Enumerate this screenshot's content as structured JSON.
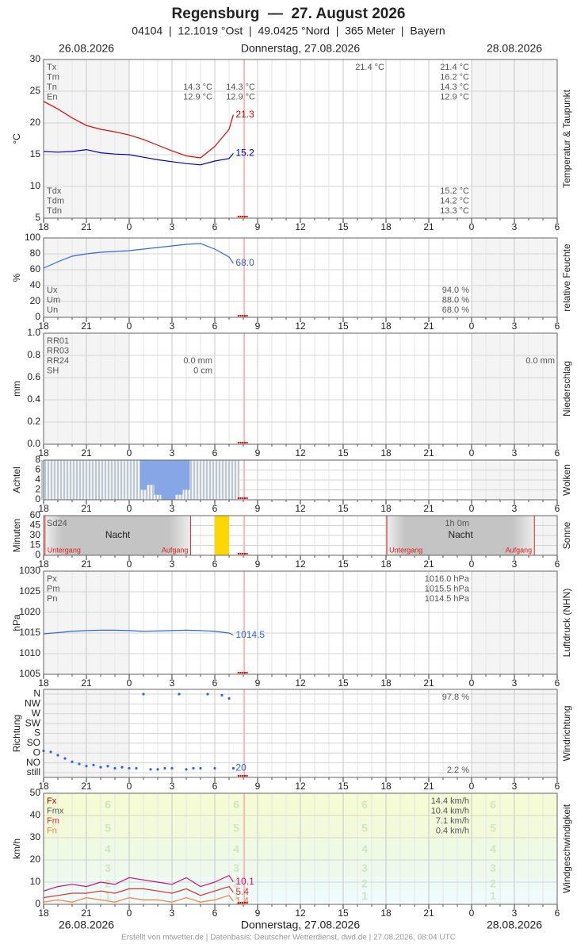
{
  "header": {
    "title": "Regensburg  —  27. August 2026",
    "subtitle": "04104  |  12.1019 °Ost  |  49.0425 °Nord  |  365 Meter  |  Bayern"
  },
  "dates": [
    "26.08.2026",
    "Donnerstag, 27.08.2026",
    "28.08.2026"
  ],
  "footer": "Erstellt von mtwetter.de | Datenbasis: Deutscher Wetterdienst, dwd.de | 27.08.2026, 08:04 UTC",
  "chart_data": [
    {
      "type": "line",
      "ylabel": "°C",
      "side_label": "Temperatur & Taupunkt",
      "xlim": [
        18,
        54
      ],
      "xticks": [
        18,
        21,
        {
          "value": 24,
          "label": "0"
        },
        {
          "value": 27,
          "label": "3"
        },
        {
          "value": 30,
          "label": "6"
        },
        {
          "value": 33,
          "label": "9"
        },
        {
          "value": 36,
          "label": "12"
        },
        {
          "value": 39,
          "label": "15"
        },
        {
          "value": 42,
          "label": "18"
        },
        {
          "value": 45,
          "label": "21"
        },
        {
          "value": 48,
          "label": "0"
        },
        {
          "value": 51,
          "label": "3"
        },
        {
          "value": 54,
          "label": "6"
        }
      ],
      "ylim": [
        5,
        30
      ],
      "yticks": [
        5,
        10,
        15,
        20,
        25,
        30
      ],
      "x": [
        18,
        19,
        20,
        21,
        22,
        23,
        24,
        25,
        26,
        27,
        28,
        29,
        30,
        31,
        31.3
      ],
      "series": [
        {
          "color": "#e00000",
          "values": [
            23.4,
            22.2,
            20.8,
            19.6,
            19.0,
            18.6,
            18.1,
            17.4,
            16.5,
            15.6,
            14.8,
            14.5,
            16.3,
            19.0,
            21.3
          ],
          "last_label": "21.3"
        },
        {
          "color": "#0000cc",
          "values": [
            15.5,
            15.4,
            15.5,
            15.8,
            15.3,
            15.1,
            15.0,
            14.6,
            14.2,
            13.9,
            13.6,
            13.4,
            14.0,
            14.4,
            15.2
          ],
          "last_label": "15.2"
        }
      ],
      "stats": [
        {
          "corner": "top",
          "names": [
            "Tx",
            "Tm",
            "Tn",
            "En"
          ],
          "columns": [
            [
              null,
              null,
              "14.3 °C",
              "12.9 °C"
            ],
            [
              null,
              null,
              "14.3 °C",
              "12.9 °C"
            ],
            [
              "21.4 °C",
              null,
              null,
              null
            ],
            [
              "21.4 °C",
              "16.2 °C",
              "14.3 °C",
              "12.9 °C"
            ]
          ]
        },
        {
          "corner": "bottom",
          "names": [
            "Tdx",
            "Tdm",
            "Tdn"
          ],
          "columns": [
            [
              "15.2 °C",
              "14.2 °C",
              "13.3 °C"
            ]
          ]
        }
      ]
    },
    {
      "type": "line",
      "ylabel": "%",
      "side_label": "relative Feuchte",
      "xlim": [
        18,
        54
      ],
      "xticks": [
        18,
        21,
        {
          "value": 24,
          "label": "0"
        },
        {
          "value": 27,
          "label": "3"
        },
        {
          "value": 30,
          "label": "6"
        },
        {
          "value": 33,
          "label": "9"
        },
        {
          "value": 36,
          "label": "12"
        },
        {
          "value": 39,
          "label": "15"
        },
        {
          "value": 42,
          "label": "18"
        },
        {
          "value": 45,
          "label": "21"
        },
        {
          "value": 48,
          "label": "0"
        },
        {
          "value": 51,
          "label": "3"
        },
        {
          "value": 54,
          "label": "6"
        }
      ],
      "ylim": [
        0,
        100
      ],
      "yticks": [
        0,
        20,
        40,
        60,
        80,
        100
      ],
      "x": [
        18,
        19,
        20,
        21,
        22,
        23,
        24,
        25,
        26,
        27,
        28,
        29,
        30,
        31,
        31.3
      ],
      "series": [
        {
          "color": "#3366dd",
          "values": [
            62,
            70,
            77,
            80,
            82,
            83,
            84,
            86,
            88,
            90,
            92,
            93,
            86,
            76,
            68
          ],
          "last_label": "68.0"
        }
      ],
      "stats": [
        {
          "corner": "bottom",
          "names": [
            "Ux",
            "Um",
            "Un"
          ],
          "columns": [
            [
              "94.0 %",
              "88.0 %",
              "68.0 %"
            ]
          ]
        }
      ]
    },
    {
      "type": "bar",
      "ylabel": "mm",
      "side_label": "Niederschlag",
      "xlim": [
        18,
        54
      ],
      "xticks": [
        18,
        21,
        {
          "value": 24,
          "label": "0"
        },
        {
          "value": 27,
          "label": "3"
        },
        {
          "value": 30,
          "label": "6"
        },
        {
          "value": 33,
          "label": "9"
        },
        {
          "value": 36,
          "label": "12"
        },
        {
          "value": 39,
          "label": "15"
        },
        {
          "value": 42,
          "label": "18"
        },
        {
          "value": 45,
          "label": "21"
        },
        {
          "value": 48,
          "label": "0"
        },
        {
          "value": 51,
          "label": "3"
        },
        {
          "value": 54,
          "label": "6"
        }
      ],
      "ylim": [
        0,
        1
      ],
      "yticks": [
        {
          "value": 0,
          "label": "0.0"
        },
        0.2,
        0.4,
        0.6,
        0.8,
        {
          "value": 1,
          "label": "1.0"
        }
      ],
      "stats": [
        {
          "corner": "top",
          "names": [
            "RR01",
            "RR03",
            "RR24",
            "SH"
          ],
          "columns": [
            [
              null,
              null,
              "0.0 mm",
              "0 cm"
            ],
            [
              null,
              null,
              "0.0 mm",
              null
            ]
          ]
        }
      ]
    },
    {
      "type": "bar",
      "ylabel": "Achtel",
      "side_label": "Wolken",
      "hatch": true,
      "color": "#8fa0b0",
      "complement_color": "#87a6e6",
      "xlim": [
        18,
        54
      ],
      "xticks": [
        18,
        21,
        {
          "value": 24,
          "label": "0"
        },
        {
          "value": 27,
          "label": "3"
        },
        {
          "value": 30,
          "label": "6"
        },
        {
          "value": 33,
          "label": "9"
        },
        {
          "value": 36,
          "label": "12"
        },
        {
          "value": 39,
          "label": "15"
        },
        {
          "value": 42,
          "label": "18"
        },
        {
          "value": 45,
          "label": "21"
        },
        {
          "value": 48,
          "label": "0"
        },
        {
          "value": 51,
          "label": "3"
        },
        {
          "value": 54,
          "label": "6"
        }
      ],
      "ylim": [
        0,
        8
      ],
      "yticks": [
        0,
        2,
        4,
        6,
        8
      ],
      "x": [
        18,
        18.5,
        19,
        19.5,
        20,
        20.5,
        21,
        21.5,
        22,
        22.5,
        23,
        23.5,
        24,
        24.5,
        25,
        25.5,
        26,
        26.5,
        27,
        27.5,
        28,
        28.5,
        29,
        29.5,
        30,
        30.5,
        31,
        31.5
      ],
      "values": [
        8,
        8,
        8,
        8,
        8,
        8,
        8,
        8,
        8,
        8,
        8,
        8,
        8,
        8,
        2,
        3,
        1,
        0,
        0,
        1,
        2,
        8,
        8,
        8,
        8,
        8,
        8,
        8
      ]
    },
    {
      "type": "bar",
      "ylabel": "Minuten",
      "side_label": "Sonne",
      "color": "#ffd700",
      "night_label": "Nacht",
      "sunset_label": "Untergang",
      "sunrise_label": "Aufgang",
      "xlim": [
        18,
        54
      ],
      "xticks": [
        18,
        21,
        {
          "value": 24,
          "label": "0"
        },
        {
          "value": 27,
          "label": "3"
        },
        {
          "value": 30,
          "label": "6"
        },
        {
          "value": 33,
          "label": "9"
        },
        {
          "value": 36,
          "label": "12"
        },
        {
          "value": 39,
          "label": "15"
        },
        {
          "value": 42,
          "label": "18"
        },
        {
          "value": 45,
          "label": "21"
        },
        {
          "value": 48,
          "label": "0"
        },
        {
          "value": 51,
          "label": "3"
        },
        {
          "value": 54,
          "label": "6"
        }
      ],
      "ylim": [
        0,
        60
      ],
      "yticks": [
        0,
        15,
        30,
        45,
        60
      ],
      "x": [
        30.5
      ],
      "values": [
        60
      ],
      "stats": [
        {
          "corner": "top",
          "names": [
            "Sd24"
          ],
          "columns": [
            [
              "1h 0m"
            ]
          ]
        }
      ]
    },
    {
      "type": "line",
      "ylabel": "hPa",
      "side_label": "Luftdruck (NHN)",
      "xlim": [
        18,
        54
      ],
      "xticks": [
        18,
        21,
        {
          "value": 24,
          "label": "0"
        },
        {
          "value": 27,
          "label": "3"
        },
        {
          "value": 30,
          "label": "6"
        },
        {
          "value": 33,
          "label": "9"
        },
        {
          "value": 36,
          "label": "12"
        },
        {
          "value": 39,
          "label": "15"
        },
        {
          "value": 42,
          "label": "18"
        },
        {
          "value": 45,
          "label": "21"
        },
        {
          "value": 48,
          "label": "0"
        },
        {
          "value": 51,
          "label": "3"
        },
        {
          "value": 54,
          "label": "6"
        }
      ],
      "ylim": [
        1005,
        1030
      ],
      "yticks": [
        1005,
        1010,
        1015,
        1020,
        1025,
        1030
      ],
      "x": [
        18,
        19,
        20,
        21,
        22,
        23,
        24,
        25,
        26,
        27,
        28,
        29,
        30,
        31,
        31.3
      ],
      "series": [
        {
          "color": "#3366dd",
          "values": [
            1014.8,
            1015.1,
            1015.4,
            1015.6,
            1015.7,
            1015.7,
            1015.6,
            1015.4,
            1015.5,
            1015.6,
            1015.7,
            1015.6,
            1015.4,
            1015.0,
            1014.5
          ],
          "last_label": "1014.5"
        }
      ],
      "stats": [
        {
          "corner": "top",
          "names": [
            "Px",
            "Pm",
            "Pn"
          ],
          "columns": [
            [
              "1016.0 hPa",
              "1015.5 hPa",
              "1014.5 hPa"
            ]
          ]
        }
      ]
    },
    {
      "type": "scatter",
      "ylabel": "Richtung",
      "side_label": "Windrichtung",
      "xlim": [
        18,
        54
      ],
      "xticks": [
        18,
        21,
        {
          "value": 24,
          "label": "0"
        },
        {
          "value": 27,
          "label": "3"
        },
        {
          "value": 30,
          "label": "6"
        },
        {
          "value": 33,
          "label": "9"
        },
        {
          "value": 36,
          "label": "12"
        },
        {
          "value": 39,
          "label": "15"
        },
        {
          "value": 42,
          "label": "18"
        },
        {
          "value": 45,
          "label": "21"
        },
        {
          "value": 48,
          "label": "0"
        },
        {
          "value": 51,
          "label": "3"
        },
        {
          "value": 54,
          "label": "6"
        }
      ],
      "ylim": [
        0,
        360
      ],
      "yticks": [
        {
          "value": 0,
          "label": "still"
        },
        {
          "value": 45,
          "label": "NO"
        },
        {
          "value": 90,
          "label": "O"
        },
        {
          "value": 135,
          "label": "SO"
        },
        {
          "value": 180,
          "label": "S"
        },
        {
          "value": 225,
          "label": "SW"
        },
        {
          "value": 270,
          "label": "W"
        },
        {
          "value": 315,
          "label": "NW"
        },
        {
          "value": 360,
          "label": "N"
        }
      ],
      "x": [
        18,
        18.5,
        19,
        19.5,
        20,
        20.5,
        21,
        21.5,
        22,
        22.5,
        23,
        23.5,
        24,
        24.5,
        25,
        25.5,
        26,
        26.5,
        27,
        27.5,
        28,
        28.5,
        29,
        29.5,
        30,
        30.5,
        31,
        31.3
      ],
      "series": [
        {
          "color": "#3366dd",
          "values": [
            100,
            95,
            80,
            65,
            50,
            40,
            30,
            35,
            25,
            30,
            20,
            25,
            20,
            20,
            360,
            15,
            15,
            20,
            20,
            360,
            15,
            20,
            20,
            360,
            20,
            355,
            340,
            20
          ],
          "last_label": "20"
        }
      ],
      "stats": [
        {
          "corner": "top",
          "columns": [
            [
              "97.8 %"
            ]
          ]
        },
        {
          "corner": "bottom",
          "columns": [
            [
              "2.2 %"
            ]
          ]
        }
      ]
    },
    {
      "type": "line",
      "ylabel": "km/h",
      "side_label": "Windgeschwindigkeit",
      "xlim": [
        18,
        54
      ],
      "xticks": [
        18,
        21,
        {
          "value": 24,
          "label": "0"
        },
        {
          "value": 27,
          "label": "3"
        },
        {
          "value": 30,
          "label": "6"
        },
        {
          "value": 33,
          "label": "9"
        },
        {
          "value": 36,
          "label": "12"
        },
        {
          "value": 39,
          "label": "15"
        },
        {
          "value": 42,
          "label": "18"
        },
        {
          "value": 45,
          "label": "21"
        },
        {
          "value": 48,
          "label": "0"
        },
        {
          "value": 51,
          "label": "3"
        },
        {
          "value": 54,
          "label": "6"
        }
      ],
      "ylim": [
        0,
        50
      ],
      "yticks": [
        0,
        10,
        20,
        30,
        40,
        50
      ],
      "bands": [
        {
          "label": "1",
          "from": 1,
          "to": 6
        },
        {
          "label": "2",
          "from": 6,
          "to": 12
        },
        {
          "label": "3",
          "from": 12,
          "to": 20
        },
        {
          "label": "4",
          "from": 20,
          "to": 29
        },
        {
          "label": "5",
          "from": 29,
          "to": 39
        },
        {
          "label": "6",
          "from": 39,
          "to": 50
        }
      ],
      "x": [
        18,
        19,
        20,
        21,
        22,
        23,
        24,
        25,
        26,
        27,
        28,
        29,
        30,
        31,
        31.3
      ],
      "series": [
        {
          "color": "#c8107a",
          "values": [
            6,
            8,
            9,
            8,
            10,
            9,
            12,
            11,
            10,
            9,
            12,
            8,
            10,
            13,
            10.1
          ],
          "last_label": "10.1"
        },
        {
          "color": "#e03030",
          "values": [
            3,
            4,
            5,
            5,
            6,
            5,
            7,
            7,
            6,
            5,
            7,
            4,
            6,
            8,
            5.4
          ],
          "last_label": "5.4"
        },
        {
          "color": "#f08040",
          "values": [
            1,
            2,
            1,
            3,
            2,
            1,
            3,
            2,
            2,
            1,
            3,
            1,
            2,
            4,
            1.4
          ],
          "last_label": "1.4"
        }
      ],
      "stats": [
        {
          "corner": "top",
          "names": [
            "Fx",
            "Fmx",
            "Fm",
            "Fn"
          ],
          "colors": [
            "#b00000",
            "#555555",
            "#e03030",
            "#f08040"
          ],
          "columns": [
            [
              "14.4 km/h",
              "10.4 km/h",
              "7.1 km/h",
              "0.4 km/h"
            ]
          ]
        }
      ]
    }
  ]
}
